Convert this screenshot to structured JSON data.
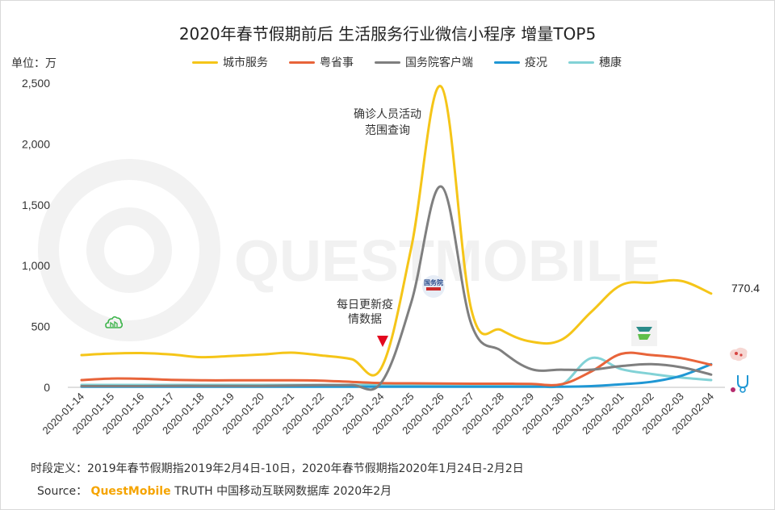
{
  "chart_data": {
    "type": "line",
    "title": "2020年春节假期前后 生活服务行业微信小程序 增量TOP5",
    "ylabel": "单位：万",
    "xlabel": "",
    "ylim": [
      0,
      2500
    ],
    "yticks": [
      0,
      500,
      1000,
      1500,
      2000,
      2500
    ],
    "ytick_labels": [
      "0",
      "500",
      "1,000",
      "1,500",
      "2,000",
      "2,500"
    ],
    "categories": [
      "2020-01-14",
      "2020-01-15",
      "2020-01-16",
      "2020-01-17",
      "2020-01-18",
      "2020-01-19",
      "2020-01-20",
      "2020-01-21",
      "2020-01-22",
      "2020-01-23",
      "2020-01-24",
      "2020-01-25",
      "2020-01-26",
      "2020-01-27",
      "2020-01-28",
      "2020-01-29",
      "2020-01-30",
      "2020-01-31",
      "2020-02-01",
      "2020-02-02",
      "2020-02-03",
      "2020-02-04"
    ],
    "series": [
      {
        "name": "城市服务",
        "color": "#f5c518",
        "values": [
          265,
          278,
          282,
          270,
          248,
          258,
          270,
          285,
          262,
          232,
          160,
          1150,
          2470,
          640,
          470,
          375,
          390,
          620,
          840,
          860,
          875,
          770.4
        ]
      },
      {
        "name": "粤省事",
        "color": "#e8643a",
        "values": [
          60,
          72,
          70,
          62,
          58,
          58,
          58,
          58,
          55,
          45,
          35,
          33,
          32,
          30,
          30,
          28,
          25,
          130,
          275,
          265,
          240,
          185
        ]
      },
      {
        "name": "国务院客户端",
        "color": "#7f7f7f",
        "values": [
          10,
          10,
          10,
          12,
          12,
          12,
          12,
          15,
          18,
          20,
          40,
          700,
          1650,
          520,
          300,
          150,
          145,
          145,
          175,
          190,
          165,
          105
        ]
      },
      {
        "name": "疫况",
        "color": "#1f97d4",
        "values": [
          5,
          5,
          5,
          5,
          5,
          5,
          5,
          5,
          5,
          5,
          5,
          5,
          5,
          5,
          5,
          5,
          5,
          10,
          25,
          45,
          95,
          190
        ]
      },
      {
        "name": "穗康",
        "color": "#82d2d6",
        "values": [
          20,
          20,
          20,
          20,
          20,
          20,
          20,
          20,
          20,
          20,
          20,
          20,
          20,
          20,
          20,
          20,
          20,
          240,
          150,
          110,
          80,
          60
        ]
      }
    ],
    "annotations": [
      {
        "text": "确诊人员活动",
        "text2": "范围查询",
        "category": "2020-01-26"
      },
      {
        "text": "每日更新疫",
        "text2": "情数据",
        "category": "2020-01-24"
      }
    ],
    "end_label": "770.4"
  },
  "labels": {
    "unit": "单位：万",
    "watermark": "QUESTMOBILE",
    "icon_gwy_text": "国务院",
    "footnote": "时段定义：2019年春节假期指2019年2月4日-10日，2020年春节假期指2020年1月24日-2月2日",
    "source_prefix": "Source：",
    "source_brand": "QuestMobile",
    "source_suffix": " TRUTH 中国移动互联网数据库 2020年2月"
  },
  "colors": {
    "marker": "#e3081e",
    "axis": "#bfbfbf",
    "icon_green": "#3cb34a",
    "icon_blue": "#2b6cb0"
  }
}
